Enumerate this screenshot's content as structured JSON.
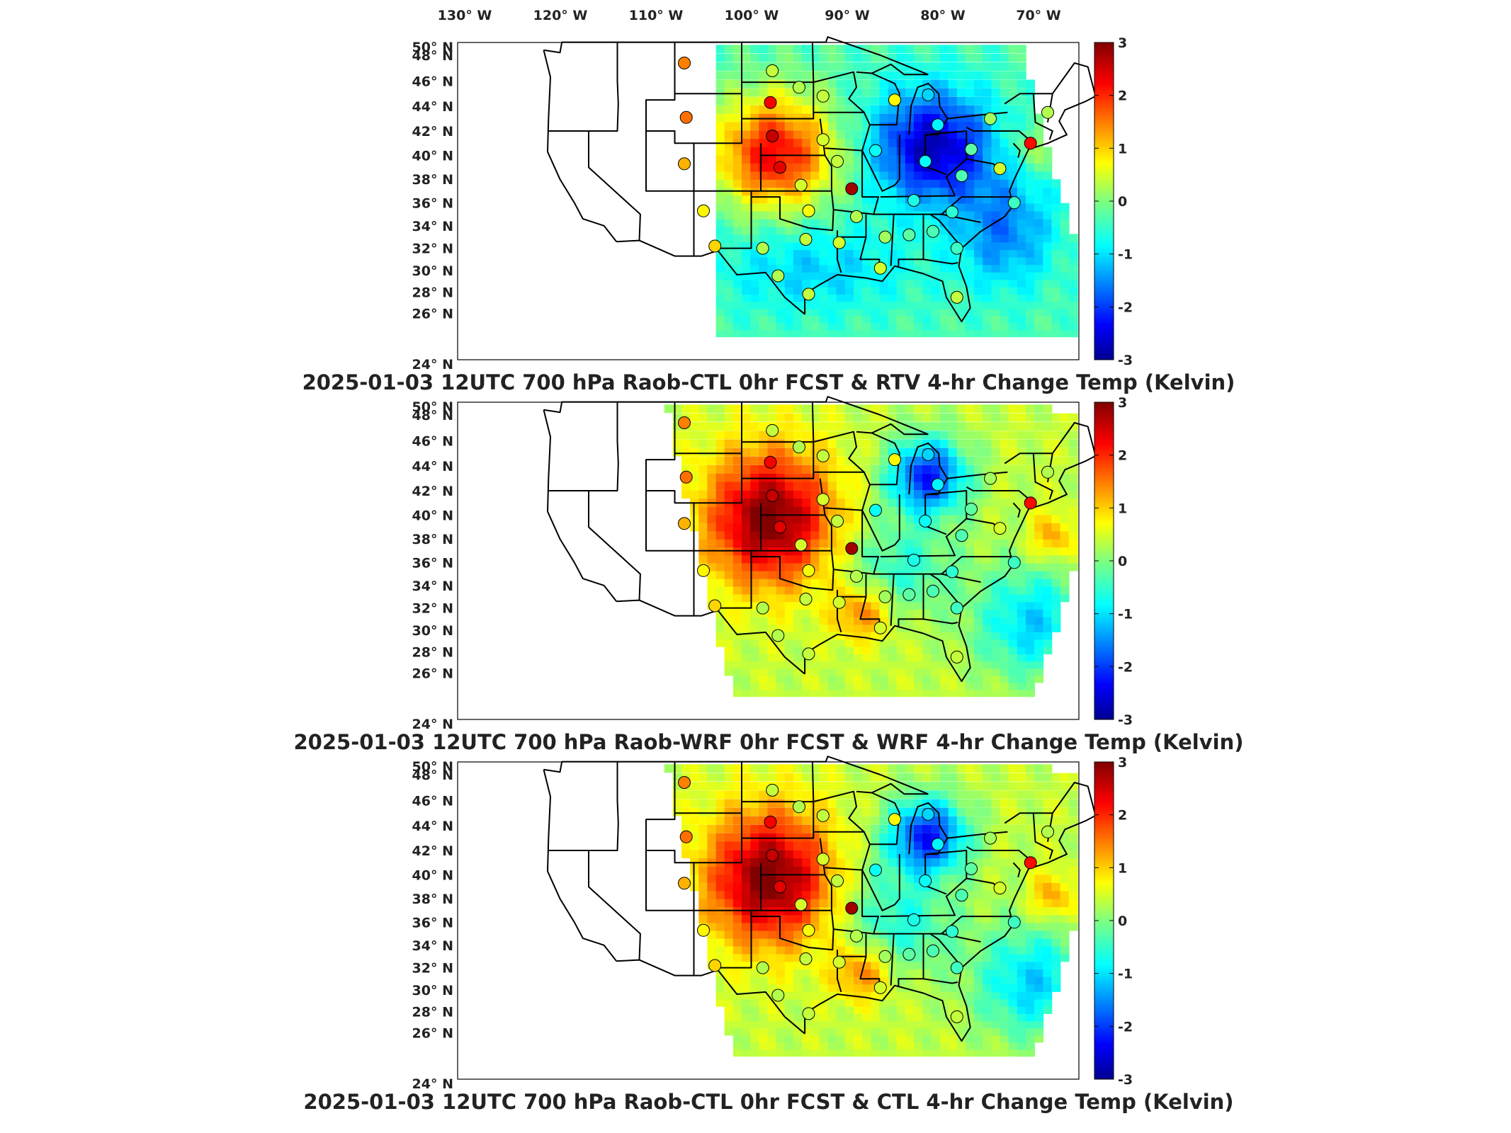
{
  "chart_data": {
    "type": "map",
    "longitude_ticks": [
      "130° W",
      "120° W",
      "110° W",
      "100° W",
      "90° W",
      "80° W",
      "70° W"
    ],
    "latitude_ticks": [
      "50° N",
      "48° N",
      "46° N",
      "44° N",
      "42° N",
      "40° N",
      "38° N",
      "36° N",
      "34° N",
      "32° N",
      "30° N",
      "28° N",
      "26° N",
      "24° N"
    ],
    "colorbar": {
      "min": -3,
      "max": 3,
      "ticks": [
        "3",
        "2",
        "1",
        "0",
        "-1",
        "-2",
        "-3"
      ],
      "colormap": "jet"
    },
    "panels": [
      {
        "title": "2025-01-03 12UTC 700 hPa Raob-CTL 0hr FCST & RTV 4-hr Change Temp (Kelvin)",
        "field": "rtv"
      },
      {
        "title": "2025-01-03 12UTC 700 hPa Raob-WRF 0hr FCST & WRF 4-hr Change Temp (Kelvin)",
        "field": "wrf"
      },
      {
        "title": "2025-01-03 12UTC 700 hPa Raob-CTL 0hr FCST & CTL 4-hr Change Temp (Kelvin)",
        "field": "ctl"
      }
    ],
    "raob_stations": [
      {
        "lon": -110.0,
        "lat": 47.4,
        "value": 1.5
      },
      {
        "lon": -109.8,
        "lat": 43.1,
        "value": 1.6
      },
      {
        "lon": -110.0,
        "lat": 39.3,
        "value": 1.2
      },
      {
        "lon": -108.0,
        "lat": 35.3,
        "value": 0.8
      },
      {
        "lon": -106.8,
        "lat": 32.2,
        "value": 1.0
      },
      {
        "lon": -100.8,
        "lat": 46.8,
        "value": 0.4
      },
      {
        "lon": -101.0,
        "lat": 44.3,
        "value": 2.3
      },
      {
        "lon": -100.8,
        "lat": 41.6,
        "value": 2.6
      },
      {
        "lon": -100.0,
        "lat": 39.0,
        "value": 2.4
      },
      {
        "lon": -97.8,
        "lat": 37.5,
        "value": 0.5
      },
      {
        "lon": -97.0,
        "lat": 35.3,
        "value": 0.7
      },
      {
        "lon": -97.3,
        "lat": 32.8,
        "value": 0.4
      },
      {
        "lon": -101.8,
        "lat": 32.0,
        "value": 0.3
      },
      {
        "lon": -100.2,
        "lat": 29.5,
        "value": 0.3
      },
      {
        "lon": -97.0,
        "lat": 27.8,
        "value": 0.4
      },
      {
        "lon": -98.0,
        "lat": 45.5,
        "value": 0.3
      },
      {
        "lon": -95.5,
        "lat": 44.8,
        "value": 0.4
      },
      {
        "lon": -95.5,
        "lat": 41.3,
        "value": 0.5
      },
      {
        "lon": -94.0,
        "lat": 39.5,
        "value": 0.4
      },
      {
        "lon": -92.5,
        "lat": 37.2,
        "value": 2.8
      },
      {
        "lon": -93.8,
        "lat": 32.5,
        "value": 0.5
      },
      {
        "lon": -92.0,
        "lat": 34.8,
        "value": 0.3
      },
      {
        "lon": -89.5,
        "lat": 30.2,
        "value": 0.5
      },
      {
        "lon": -89.0,
        "lat": 33.0,
        "value": 0.2
      },
      {
        "lon": -86.5,
        "lat": 33.2,
        "value": -0.2
      },
      {
        "lon": -84.0,
        "lat": 33.5,
        "value": -0.3
      },
      {
        "lon": -90.0,
        "lat": 40.4,
        "value": -0.7
      },
      {
        "lon": -88.0,
        "lat": 44.5,
        "value": 0.8
      },
      {
        "lon": -84.5,
        "lat": 44.9,
        "value": -1.0
      },
      {
        "lon": -83.5,
        "lat": 42.5,
        "value": -0.8
      },
      {
        "lon": -84.8,
        "lat": 39.5,
        "value": -0.7
      },
      {
        "lon": -86.0,
        "lat": 36.2,
        "value": -0.6
      },
      {
        "lon": -82.0,
        "lat": 35.2,
        "value": -0.5
      },
      {
        "lon": -81.0,
        "lat": 38.3,
        "value": -0.3
      },
      {
        "lon": -80.0,
        "lat": 40.5,
        "value": -0.2
      },
      {
        "lon": -78.0,
        "lat": 43.0,
        "value": 0.2
      },
      {
        "lon": -81.5,
        "lat": 32.0,
        "value": -0.4
      },
      {
        "lon": -81.5,
        "lat": 27.5,
        "value": 0.4
      },
      {
        "lon": -77.0,
        "lat": 38.9,
        "value": 0.5
      },
      {
        "lon": -75.5,
        "lat": 36.0,
        "value": -0.4
      },
      {
        "lon": -73.8,
        "lat": 41.0,
        "value": 2.2
      },
      {
        "lon": -72.0,
        "lat": 43.5,
        "value": 0.3
      }
    ]
  }
}
